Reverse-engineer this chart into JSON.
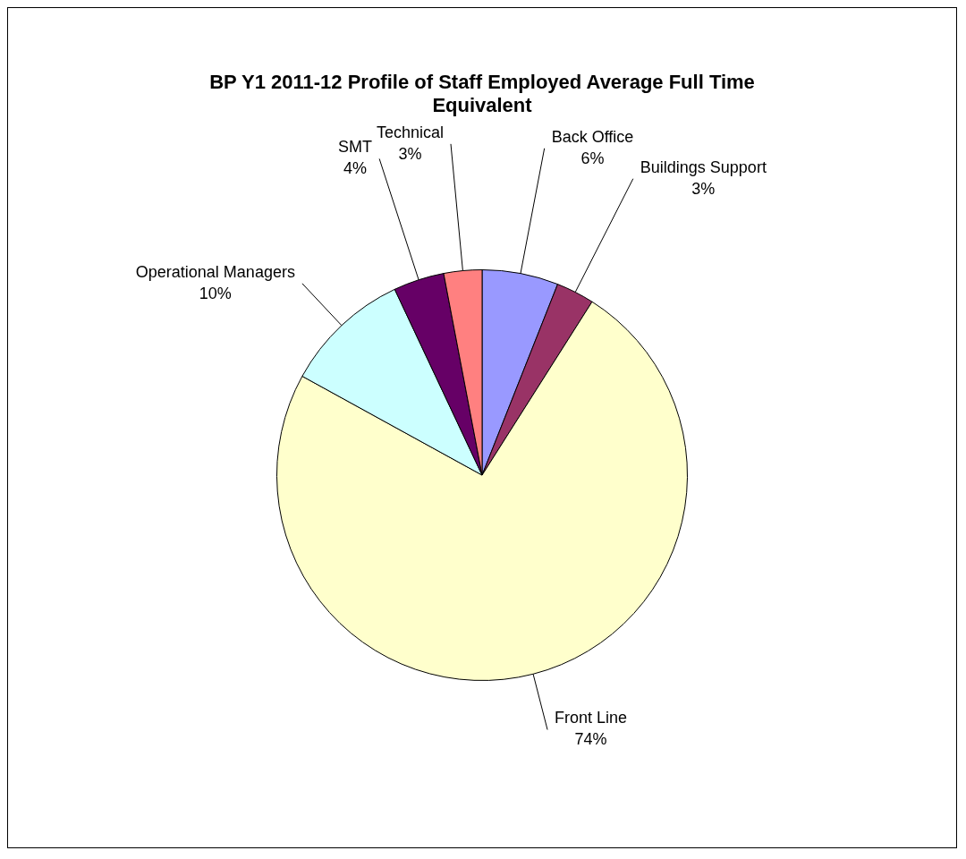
{
  "chart_data": {
    "type": "pie",
    "title": "BP Y1 2011-12 Profile of Staff Employed Average Full Time Equivalent",
    "categories": [
      "Back Office",
      "Buildings Support",
      "Front Line",
      "Operational Managers",
      "SMT",
      "Technical"
    ],
    "values": [
      6,
      3,
      74,
      10,
      4,
      3
    ],
    "value_labels": [
      "6%",
      "3%",
      "74%",
      "10%",
      "4%",
      "3%"
    ],
    "colors": [
      "#9999ff",
      "#993366",
      "#ffffcc",
      "#ccffff",
      "#660066",
      "#ff8080"
    ],
    "legend": false
  }
}
